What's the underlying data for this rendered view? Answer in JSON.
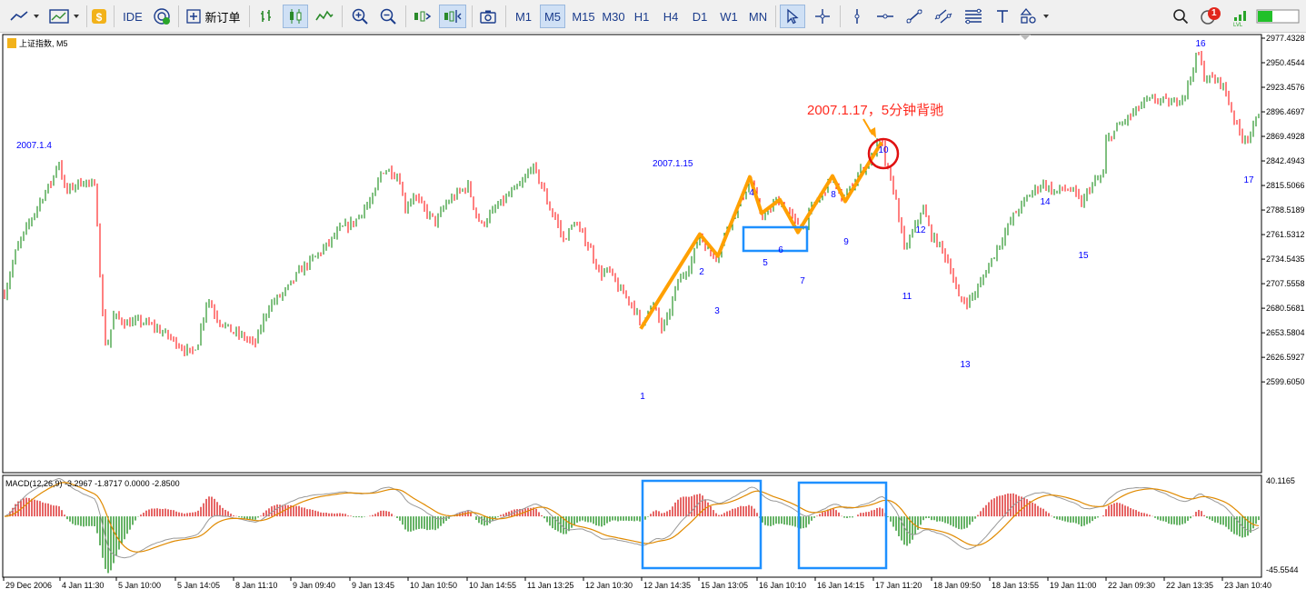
{
  "toolbar": {
    "ide_label": "IDE",
    "new_order_label": "新订单",
    "timeframes": [
      "M1",
      "M5",
      "M15",
      "M30",
      "H1",
      "H4",
      "D1",
      "W1",
      "MN"
    ],
    "active_timeframe": "M5",
    "notification_count": "1"
  },
  "chart_data": [
    {
      "type": "candlestick",
      "title": "上证指数, M5",
      "price_axis_ticks": [
        "2977.4328",
        "2950.4544",
        "2923.4576",
        "2896.4697",
        "2869.4928",
        "2842.4943",
        "2815.5066",
        "2788.5189",
        "2761.5312",
        "2734.5435",
        "2707.5558",
        "2680.5681",
        "2653.5804",
        "2626.5927",
        "2599.6050"
      ],
      "time_axis_ticks": [
        "29 Dec 2006",
        "4 Jan 11:30",
        "5 Jan 10:00",
        "5 Jan 14:05",
        "8 Jan 11:10",
        "9 Jan 09:40",
        "9 Jan 13:45",
        "10 Jan 10:50",
        "10 Jan 14:55",
        "11 Jan 13:25",
        "12 Jan 10:30",
        "12 Jan 14:35",
        "15 Jan 13:05",
        "16 Jan 10:10",
        "16 Jan 14:15",
        "17 Jan 11:20",
        "18 Jan 09:50",
        "18 Jan 13:55",
        "19 Jan 11:00",
        "22 Jan 09:30",
        "22 Jan 13:35",
        "23 Jan 10:40"
      ],
      "ylim": [
        2585,
        2985
      ],
      "close_trend": [
        [
          0,
          2678
        ],
        [
          18,
          2745
        ],
        [
          30,
          2770
        ],
        [
          45,
          2800
        ],
        [
          58,
          2822
        ],
        [
          64,
          2845
        ],
        [
          72,
          2808
        ],
        [
          85,
          2818
        ],
        [
          95,
          2820
        ],
        [
          105,
          2812
        ],
        [
          110,
          2720
        ],
        [
          113,
          2673
        ],
        [
          117,
          2633
        ],
        [
          125,
          2672
        ],
        [
          140,
          2664
        ],
        [
          155,
          2666
        ],
        [
          170,
          2660
        ],
        [
          185,
          2650
        ],
        [
          200,
          2638
        ],
        [
          210,
          2630
        ],
        [
          218,
          2644
        ],
        [
          228,
          2692
        ],
        [
          240,
          2668
        ],
        [
          255,
          2655
        ],
        [
          270,
          2648
        ],
        [
          280,
          2640
        ],
        [
          295,
          2682
        ],
        [
          315,
          2700
        ],
        [
          330,
          2722
        ],
        [
          345,
          2735
        ],
        [
          360,
          2750
        ],
        [
          375,
          2768
        ],
        [
          390,
          2775
        ],
        [
          400,
          2790
        ],
        [
          410,
          2800
        ],
        [
          420,
          2832
        ],
        [
          430,
          2832
        ],
        [
          440,
          2822
        ],
        [
          445,
          2790
        ],
        [
          455,
          2805
        ],
        [
          470,
          2785
        ],
        [
          480,
          2775
        ],
        [
          490,
          2795
        ],
        [
          505,
          2808
        ],
        [
          515,
          2815
        ],
        [
          525,
          2780
        ],
        [
          530,
          2772
        ],
        [
          545,
          2790
        ],
        [
          560,
          2805
        ],
        [
          575,
          2818
        ],
        [
          585,
          2838
        ],
        [
          595,
          2818
        ],
        [
          605,
          2790
        ],
        [
          612,
          2778
        ],
        [
          620,
          2755
        ],
        [
          632,
          2775
        ],
        [
          640,
          2762
        ],
        [
          650,
          2745
        ],
        [
          660,
          2718
        ],
        [
          670,
          2722
        ],
        [
          680,
          2703
        ],
        [
          690,
          2692
        ],
        [
          700,
          2678
        ],
        [
          705,
          2658
        ],
        [
          712,
          2680
        ],
        [
          720,
          2682
        ],
        [
          728,
          2658
        ],
        [
          735,
          2670
        ],
        [
          745,
          2708
        ],
        [
          760,
          2730
        ],
        [
          770,
          2762
        ],
        [
          780,
          2742
        ],
        [
          790,
          2738
        ],
        [
          800,
          2770
        ],
        [
          810,
          2788
        ],
        [
          820,
          2808
        ],
        [
          825,
          2825
        ],
        [
          835,
          2788
        ],
        [
          842,
          2782
        ],
        [
          855,
          2800
        ],
        [
          865,
          2790
        ],
        [
          875,
          2775
        ],
        [
          885,
          2770
        ],
        [
          895,
          2795
        ],
        [
          905,
          2806
        ],
        [
          915,
          2825
        ],
        [
          925,
          2800
        ],
        [
          935,
          2810
        ],
        [
          945,
          2830
        ],
        [
          955,
          2838
        ],
        [
          965,
          2860
        ],
        [
          970,
          2863
        ],
        [
          975,
          2836
        ],
        [
          985,
          2805
        ],
        [
          995,
          2745
        ],
        [
          1005,
          2765
        ],
        [
          1015,
          2792
        ],
        [
          1025,
          2760
        ],
        [
          1035,
          2748
        ],
        [
          1045,
          2728
        ],
        [
          1055,
          2690
        ],
        [
          1065,
          2688
        ],
        [
          1075,
          2700
        ],
        [
          1085,
          2722
        ],
        [
          1095,
          2742
        ],
        [
          1105,
          2762
        ],
        [
          1115,
          2782
        ],
        [
          1125,
          2795
        ],
        [
          1135,
          2808
        ],
        [
          1148,
          2818
        ],
        [
          1160,
          2808
        ],
        [
          1170,
          2812
        ],
        [
          1180,
          2810
        ],
        [
          1190,
          2795
        ],
        [
          1200,
          2815
        ],
        [
          1215,
          2828
        ],
        [
          1218,
          2865
        ],
        [
          1230,
          2880
        ],
        [
          1245,
          2893
        ],
        [
          1260,
          2908
        ],
        [
          1275,
          2910
        ],
        [
          1290,
          2905
        ],
        [
          1305,
          2918
        ],
        [
          1318,
          2963
        ],
        [
          1325,
          2935
        ],
        [
          1335,
          2932
        ],
        [
          1345,
          2928
        ],
        [
          1355,
          2898
        ],
        [
          1365,
          2870
        ],
        [
          1372,
          2868
        ],
        [
          1380,
          2880
        ],
        [
          1387,
          2902
        ]
      ],
      "annotation_title": "2007.1.17，5分钟背驰",
      "date_labels": [
        "2007.1.4",
        "2007.1.15"
      ],
      "wave_labels": [
        "1",
        "2",
        "3",
        "4",
        "5",
        "6",
        "7",
        "8",
        "9",
        "10",
        "11",
        "12",
        "13",
        "14",
        "15",
        "16",
        "17"
      ],
      "colors": {
        "bull": "#008000",
        "bear": "#ff0000",
        "labels": "#0000ff",
        "annotation": "#ff2a1f",
        "wave_line": "#ffa000",
        "boxes": "#1e90ff"
      }
    },
    {
      "type": "histogram-with-lines",
      "title": "MACD(12,26,9)",
      "values_text": "-3.2967 -1.8717 0.0000 -2.8500",
      "y_ticks": [
        "40.1165",
        "-45.5544"
      ],
      "ylim": [
        -46,
        41
      ]
    }
  ]
}
